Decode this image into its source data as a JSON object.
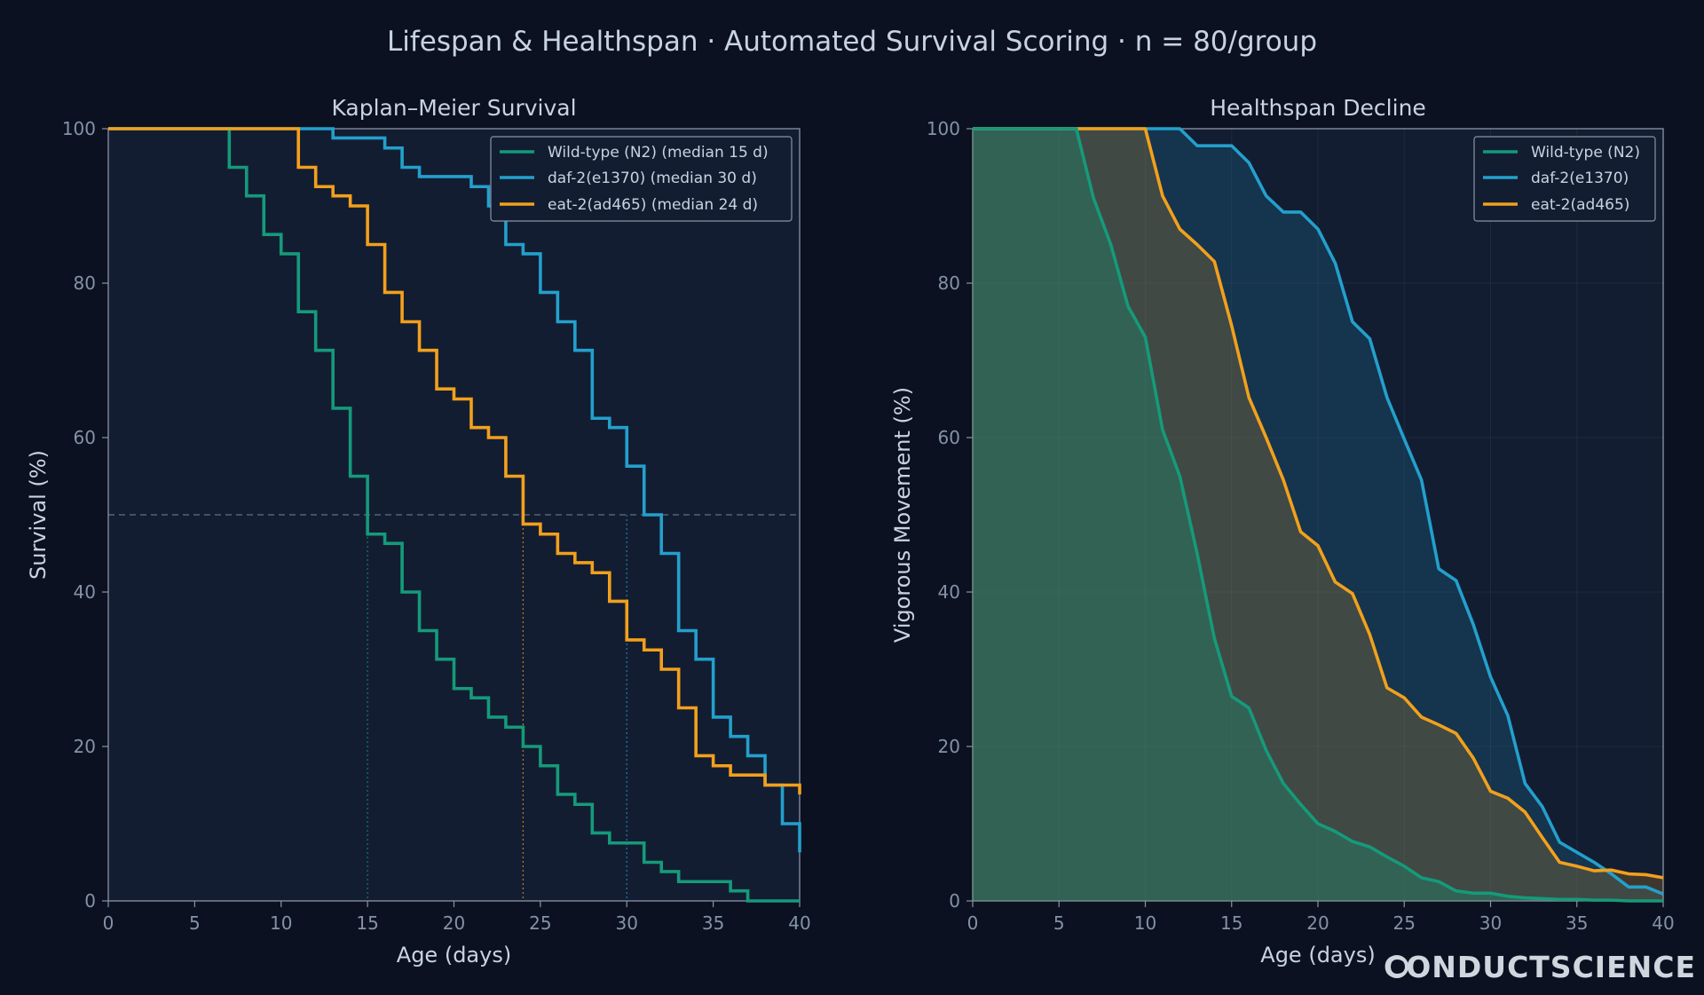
{
  "figure": {
    "title": "Lifespan & Healthspan · Automated Survival Scoring · n = 80/group",
    "watermark": "CONDUCTSCIENCE"
  },
  "colors": {
    "background": "#0b1120",
    "panel": "#131d32",
    "wild_type": "#159a7a",
    "daf2": "#23a0cc",
    "eat2": "#f2a01c",
    "text": "#c8d3e0",
    "tick": "#8492a6"
  },
  "chart_data": [
    {
      "type": "line",
      "step": true,
      "title": "Kaplan–Meier Survival",
      "xlabel": "Age (days)",
      "ylabel": "Survival (%)",
      "xlim": [
        0,
        40
      ],
      "ylim": [
        0,
        100
      ],
      "xticks": [
        0,
        5,
        10,
        15,
        20,
        25,
        30,
        35,
        40
      ],
      "yticks": [
        0,
        20,
        40,
        60,
        80,
        100
      ],
      "legend_position": "top-right",
      "reference_line": {
        "y": 50,
        "style": "dashed"
      },
      "median_markers": [
        15,
        24,
        30
      ],
      "series": [
        {
          "name": "Wild-type (N2)  (median 15 d)",
          "color_key": "wild_type",
          "x": [
            0,
            7,
            8,
            9,
            10,
            11,
            12,
            13,
            14,
            15,
            16,
            17,
            18,
            19,
            20,
            21,
            22,
            23,
            24,
            25,
            26,
            27,
            28,
            29,
            30,
            31,
            32,
            33,
            34,
            35,
            36,
            37,
            38,
            39,
            40
          ],
          "y": [
            100,
            95,
            91.3,
            86.3,
            83.8,
            76.3,
            71.3,
            63.8,
            55,
            47.5,
            46.3,
            40,
            35,
            31.3,
            27.5,
            26.3,
            23.8,
            22.5,
            20,
            17.5,
            13.8,
            12.5,
            8.8,
            7.5,
            7.5,
            5,
            3.8,
            2.5,
            2.5,
            2.5,
            1.3,
            0,
            0,
            0,
            0
          ]
        },
        {
          "name": "daf-2(e1370)  (median 30 d)",
          "color_key": "daf2",
          "x": [
            0,
            13,
            15,
            16,
            17,
            18,
            19,
            20,
            21,
            22,
            23,
            24,
            25,
            26,
            27,
            28,
            29,
            30,
            31,
            32,
            33,
            34,
            35,
            36,
            37,
            38,
            39,
            40
          ],
          "y": [
            100,
            98.8,
            98.8,
            97.5,
            95,
            93.8,
            93.8,
            93.8,
            92.5,
            90,
            85,
            83.8,
            78.8,
            75,
            71.3,
            62.5,
            61.3,
            56.3,
            50,
            45,
            35,
            31.3,
            23.8,
            21.3,
            18.8,
            15,
            10,
            6.3
          ]
        },
        {
          "name": "eat-2(ad465)  (median 24 d)",
          "color_key": "eat2",
          "x": [
            0,
            11,
            12,
            13,
            14,
            15,
            16,
            17,
            18,
            19,
            20,
            21,
            22,
            23,
            24,
            25,
            26,
            27,
            28,
            29,
            30,
            31,
            32,
            33,
            34,
            35,
            36,
            37,
            38,
            39,
            40
          ],
          "y": [
            100,
            95,
            92.5,
            91.3,
            90,
            85,
            78.8,
            75,
            71.3,
            66.3,
            65,
            61.3,
            60,
            55,
            48.8,
            47.5,
            45,
            43.8,
            42.5,
            38.8,
            33.8,
            32.5,
            30,
            25,
            18.8,
            17.5,
            16.3,
            16.3,
            15,
            15,
            13.8
          ]
        }
      ]
    },
    {
      "type": "area",
      "title": "Healthspan Decline",
      "xlabel": "Age (days)",
      "ylabel": "Vigorous Movement (%)",
      "xlim": [
        0,
        40
      ],
      "ylim": [
        0,
        100
      ],
      "xticks": [
        0,
        5,
        10,
        15,
        20,
        25,
        30,
        35,
        40
      ],
      "yticks": [
        0,
        20,
        40,
        60,
        80,
        100
      ],
      "legend_position": "top-right",
      "series": [
        {
          "name": "Wild-type (N2)",
          "color_key": "wild_type",
          "x": [
            0,
            6,
            7,
            8,
            9,
            10,
            11,
            12,
            13,
            14,
            15,
            16,
            17,
            18,
            19,
            20,
            21,
            22,
            23,
            24,
            25,
            26,
            27,
            28,
            29,
            30,
            31,
            32,
            33,
            34,
            35,
            36,
            37,
            38,
            39,
            40
          ],
          "y": [
            100,
            100,
            91,
            85,
            77,
            73,
            61,
            55,
            45,
            34,
            26.5,
            25,
            19.5,
            15.2,
            12.5,
            10,
            9,
            7.7,
            7,
            5.7,
            4.5,
            3,
            2.5,
            1.3,
            1,
            1,
            0.6,
            0.4,
            0.3,
            0.2,
            0.2,
            0.1,
            0.1,
            0,
            0,
            0
          ]
        },
        {
          "name": "daf-2(e1370)",
          "color_key": "daf2",
          "x": [
            0,
            12,
            13,
            14,
            15,
            16,
            17,
            18,
            19,
            20,
            21,
            22,
            23,
            24,
            25,
            26,
            27,
            28,
            29,
            30,
            31,
            32,
            33,
            34,
            35,
            36,
            37,
            38,
            39,
            40
          ],
          "y": [
            100,
            100,
            97.8,
            97.8,
            97.8,
            95.6,
            91.3,
            89.2,
            89.2,
            87,
            82.6,
            75,
            72.8,
            65.2,
            59.8,
            54.5,
            43,
            41.5,
            35.8,
            29,
            24,
            15.2,
            12.2,
            7.6,
            6.3,
            5,
            3.5,
            1.8,
            1.8,
            0.9
          ]
        },
        {
          "name": "eat-2(ad465)",
          "color_key": "eat2",
          "x": [
            0,
            10,
            11,
            12,
            13,
            14,
            15,
            16,
            17,
            18,
            19,
            20,
            21,
            22,
            23,
            24,
            25,
            26,
            27,
            28,
            29,
            30,
            31,
            32,
            33,
            34,
            35,
            36,
            37,
            38,
            39,
            40
          ],
          "y": [
            100,
            100,
            91.3,
            87,
            85,
            82.8,
            74.5,
            65.2,
            60,
            54.5,
            47.8,
            46,
            41.3,
            39.8,
            34.5,
            27.6,
            26.3,
            23.8,
            22.8,
            21.7,
            18.5,
            14.2,
            13.3,
            11.5,
            8.2,
            5,
            4.5,
            3.9,
            4,
            3.5,
            3.4,
            3
          ]
        }
      ]
    }
  ]
}
